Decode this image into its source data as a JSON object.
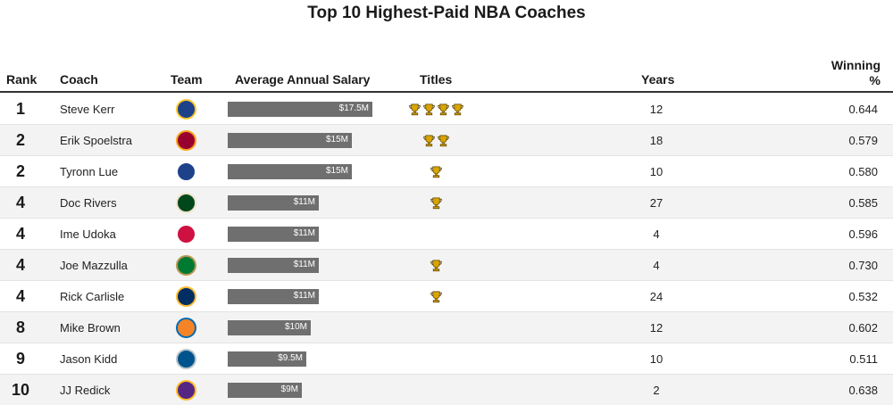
{
  "title": "Top 10 Highest-Paid NBA Coaches",
  "columns": {
    "rank": "Rank",
    "coach": "Coach",
    "team": "Team",
    "salary": "Average Annual Salary",
    "titles": "Titles",
    "years": "Years",
    "win_line1": "Winning",
    "win_line2": "%"
  },
  "chart_data": {
    "type": "table",
    "title": "Top 10 Highest-Paid NBA Coaches",
    "salary_unit": "USD millions",
    "salary_max": 17.5,
    "rows": [
      {
        "rank": "1",
        "coach": "Steve Kerr",
        "team_icon": "warriors-logo-icon",
        "team_color": "#1D428A",
        "team_accent": "#FFC72C",
        "salary": 17.5,
        "salary_label": "$17.5M",
        "titles": 4,
        "years": "12",
        "win_pct": "0.644"
      },
      {
        "rank": "2",
        "coach": "Erik Spoelstra",
        "team_icon": "heat-logo-icon",
        "team_color": "#98002E",
        "team_accent": "#F9A01B",
        "salary": 15,
        "salary_label": "$15M",
        "titles": 2,
        "years": "18",
        "win_pct": "0.579"
      },
      {
        "rank": "2",
        "coach": "Tyronn Lue",
        "team_icon": "clippers-logo-icon",
        "team_color": "#1D428A",
        "team_accent": "#ffffff",
        "salary": 15,
        "salary_label": "$15M",
        "titles": 1,
        "years": "10",
        "win_pct": "0.580"
      },
      {
        "rank": "4",
        "coach": "Doc Rivers",
        "team_icon": "bucks-logo-icon",
        "team_color": "#00471B",
        "team_accent": "#EEE1C6",
        "salary": 11,
        "salary_label": "$11M",
        "titles": 1,
        "years": "27",
        "win_pct": "0.585"
      },
      {
        "rank": "4",
        "coach": "Ime Udoka",
        "team_icon": "rockets-logo-icon",
        "team_color": "#CE1141",
        "team_accent": "#ffffff",
        "salary": 11,
        "salary_label": "$11M",
        "titles": 0,
        "years": "4",
        "win_pct": "0.596"
      },
      {
        "rank": "4",
        "coach": "Joe Mazzulla",
        "team_icon": "celtics-logo-icon",
        "team_color": "#007A33",
        "team_accent": "#BA9653",
        "salary": 11,
        "salary_label": "$11M",
        "titles": 1,
        "years": "4",
        "win_pct": "0.730"
      },
      {
        "rank": "4",
        "coach": "Rick Carlisle",
        "team_icon": "pacers-logo-icon",
        "team_color": "#002D62",
        "team_accent": "#FDBB30",
        "salary": 11,
        "salary_label": "$11M",
        "titles": 1,
        "years": "24",
        "win_pct": "0.532"
      },
      {
        "rank": "8",
        "coach": "Mike Brown",
        "team_icon": "knicks-logo-icon",
        "team_color": "#F58426",
        "team_accent": "#006BB6",
        "salary": 10,
        "salary_label": "$10M",
        "titles": 0,
        "years": "12",
        "win_pct": "0.602"
      },
      {
        "rank": "9",
        "coach": "Jason Kidd",
        "team_icon": "mavericks-logo-icon",
        "team_color": "#00538C",
        "team_accent": "#B8C4CA",
        "salary": 9.5,
        "salary_label": "$9.5M",
        "titles": 0,
        "years": "10",
        "win_pct": "0.511"
      },
      {
        "rank": "10",
        "coach": "JJ Redick",
        "team_icon": "lakers-logo-icon",
        "team_color": "#552583",
        "team_accent": "#FDB927",
        "salary": 9,
        "salary_label": "$9M",
        "titles": 0,
        "years": "2",
        "win_pct": "0.638"
      }
    ]
  },
  "colors": {
    "bar": "#6f6f6f",
    "trophy": "#d9a400",
    "trophy_outline": "#5a4200",
    "row_alt": "#f3f3f3"
  }
}
